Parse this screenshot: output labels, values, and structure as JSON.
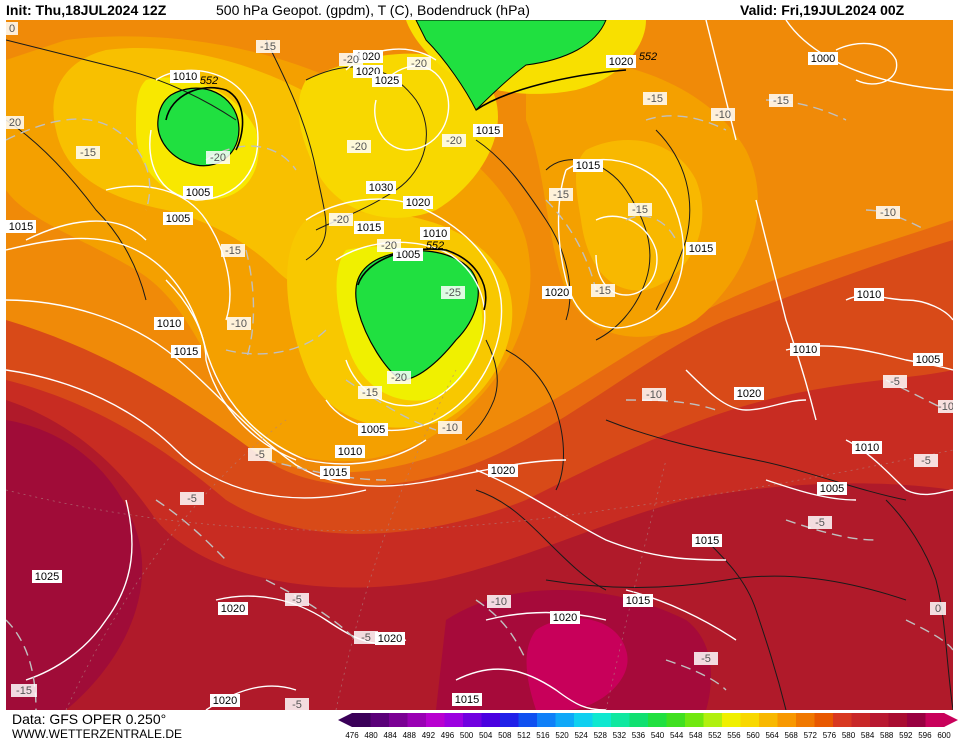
{
  "header": {
    "init": "Init: Thu,18JUL2024 12Z",
    "title": "500 hPa Geopot. (gpdm), T (C), Bodendruck (hPa)",
    "valid": "Valid: Fri,19JUL2024 00Z"
  },
  "footer": {
    "source": "Data: GFS OPER 0.250°",
    "site": "WWW.WETTERZENTRALE.DE"
  },
  "legend": {
    "values": [
      "476",
      "480",
      "484",
      "488",
      "492",
      "496",
      "500",
      "504",
      "508",
      "512",
      "516",
      "520",
      "524",
      "528",
      "532",
      "536",
      "540",
      "544",
      "548",
      "552",
      "556",
      "560",
      "564",
      "568",
      "572",
      "576",
      "580",
      "584",
      "588",
      "592",
      "596",
      "600"
    ],
    "colors": [
      "#3a0058",
      "#5a0078",
      "#7a0094",
      "#9a00b4",
      "#b800d0",
      "#9c00e0",
      "#7000e0",
      "#4a00e0",
      "#2020e8",
      "#1050f0",
      "#1080f8",
      "#10a8f8",
      "#10d0f0",
      "#10e8d0",
      "#10e8a0",
      "#10e070",
      "#20e040",
      "#40e020",
      "#70e810",
      "#b0f010",
      "#f0f000",
      "#f8d800",
      "#f8b800",
      "#f89800",
      "#f07800",
      "#e85800",
      "#d83820",
      "#c82828",
      "#b81830",
      "#a80c30",
      "#980040",
      "#c8005a"
    ]
  },
  "map_labels": {
    "pressure": [
      {
        "text": "1010",
        "cls": "p"
      },
      {
        "text": "1005",
        "cls": "p"
      },
      {
        "text": "1005",
        "cls": "p"
      },
      {
        "text": "1015",
        "cls": "p"
      },
      {
        "text": "1010",
        "cls": "p"
      },
      {
        "text": "1015",
        "cls": "p"
      },
      {
        "text": "1020",
        "cls": "p"
      },
      {
        "text": "1020",
        "cls": "p"
      },
      {
        "text": "1025",
        "cls": "p"
      },
      {
        "text": "1030",
        "cls": "p"
      },
      {
        "text": "1020",
        "cls": "p"
      },
      {
        "text": "1015",
        "cls": "p"
      },
      {
        "text": "1010",
        "cls": "p"
      },
      {
        "text": "1005",
        "cls": "p"
      },
      {
        "text": "1015",
        "cls": "p"
      },
      {
        "text": "1020",
        "cls": "p"
      },
      {
        "text": "1015",
        "cls": "p"
      },
      {
        "text": "1015",
        "cls": "p"
      },
      {
        "text": "1000",
        "cls": "p"
      },
      {
        "text": "1020",
        "cls": "p"
      },
      {
        "text": "1010",
        "cls": "p"
      },
      {
        "text": "1010",
        "cls": "p"
      },
      {
        "text": "1005",
        "cls": "p"
      },
      {
        "text": "1020",
        "cls": "p"
      },
      {
        "text": "1010",
        "cls": "p"
      },
      {
        "text": "1005",
        "cls": "p"
      },
      {
        "text": "1005",
        "cls": "p"
      },
      {
        "text": "1010",
        "cls": "p"
      },
      {
        "text": "1015",
        "cls": "p"
      },
      {
        "text": "1020",
        "cls": "p"
      },
      {
        "text": "1015",
        "cls": "p"
      },
      {
        "text": "1025",
        "cls": "p"
      },
      {
        "text": "1020",
        "cls": "p"
      },
      {
        "text": "1020",
        "cls": "p"
      },
      {
        "text": "1020",
        "cls": "p"
      },
      {
        "text": "1015",
        "cls": "p"
      },
      {
        "text": "1015",
        "cls": "p"
      },
      {
        "text": "1020",
        "cls": "p"
      }
    ],
    "temperature": [
      "-15",
      "-15",
      "-20",
      "-20",
      "-20",
      "-20",
      "-20",
      "-15",
      "-20",
      "-15",
      "-20",
      "-25",
      "-15",
      "-20",
      "-15",
      "-10",
      "-15",
      "-15",
      "-15",
      "-10",
      "-10",
      "-5",
      "-5",
      "-10",
      "-10",
      "-5",
      "-5",
      "-5",
      "-10",
      "-5",
      "-5",
      "-5",
      "-5",
      "0",
      "-15",
      "-10",
      "20",
      "0"
    ],
    "geopotential": [
      "552",
      "552",
      "552"
    ]
  }
}
